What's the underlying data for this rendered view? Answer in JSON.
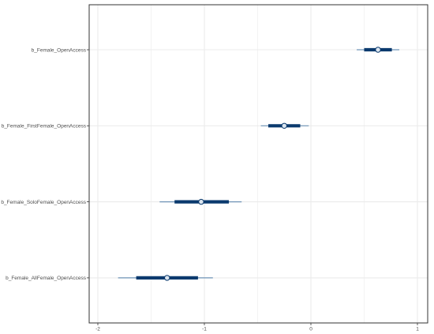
{
  "chart_data": {
    "type": "interval",
    "title": "",
    "xlabel": "",
    "ylabel": "",
    "xlim": [
      -2.1,
      1.1
    ],
    "x_ticks": [
      -2,
      -1,
      0,
      1
    ],
    "x_tick_labels": [
      "-2",
      "-1",
      "0",
      "1"
    ],
    "grid": true,
    "series": [
      {
        "label": "b_Female_OpenAccess",
        "point": 0.63,
        "inner": [
          0.5,
          0.76
        ],
        "outer": [
          0.43,
          0.83
        ]
      },
      {
        "label": "b_Female_FirstFemale_OpenAccess",
        "point": -0.25,
        "inner": [
          -0.4,
          -0.1
        ],
        "outer": [
          -0.47,
          -0.02
        ]
      },
      {
        "label": "b_Female_SoloFemale_OpenAccess",
        "point": -1.03,
        "inner": [
          -1.28,
          -0.77
        ],
        "outer": [
          -1.42,
          -0.65
        ]
      },
      {
        "label": "b_Female_AllFemale_OpenAccess",
        "point": -1.35,
        "inner": [
          -1.64,
          -1.06
        ],
        "outer": [
          -1.81,
          -0.92
        ]
      }
    ],
    "colors": {
      "thick": "#0b3a6e",
      "thin": "#6e93b6",
      "point_fill": "#dbe5ef",
      "grid": "#ebebeb",
      "frame": "#333333"
    }
  }
}
